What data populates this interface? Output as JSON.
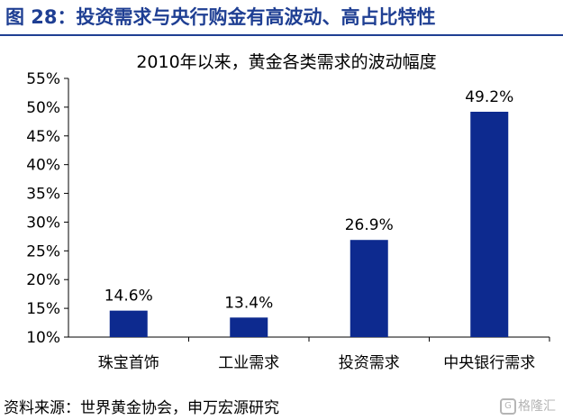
{
  "figure": {
    "title": "图 28：投资需求与央行购金有高波动、高占比特性",
    "source": "资料来源：世界黄金协会，申万宏源研究",
    "watermark": "格隆汇"
  },
  "colors": {
    "title": "#1f3f93",
    "bar": "#0d2a8f"
  },
  "chart_data": {
    "type": "bar",
    "title": "2010年以来，黄金各类需求的波动幅度",
    "categories": [
      "珠宝首饰",
      "工业需求",
      "投资需求",
      "中央银行需求"
    ],
    "values": [
      14.6,
      13.4,
      26.9,
      49.2
    ],
    "value_labels": [
      "14.6%",
      "13.4%",
      "26.9%",
      "49.2%"
    ],
    "ylim": [
      10,
      55
    ],
    "yticks": [
      10,
      15,
      20,
      25,
      30,
      35,
      40,
      45,
      50,
      55
    ],
    "ytick_labels": [
      "10%",
      "15%",
      "20%",
      "25%",
      "30%",
      "35%",
      "40%",
      "45%",
      "50%",
      "55%"
    ],
    "grid": false,
    "legend": "none"
  }
}
